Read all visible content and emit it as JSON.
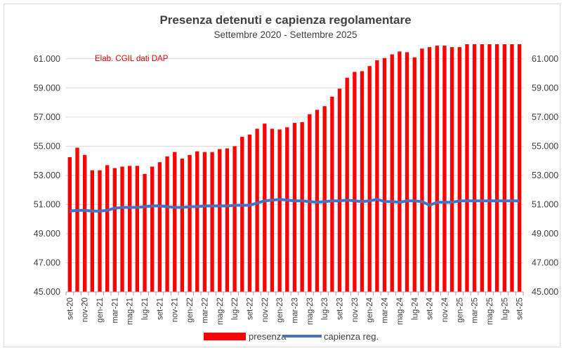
{
  "chart_data": {
    "type": "bar",
    "title": "Presenza detenuti e capienza regolamentare",
    "subtitle": "Settembre 2020 - Settembre 2025",
    "annotation": "Elab. CGIL dati  DAP",
    "ylim": [
      45000,
      62000
    ],
    "yticks": [
      "45.000",
      "47.000",
      "49.000",
      "51.000",
      "53.000",
      "55.000",
      "57.000",
      "59.000",
      "61.000"
    ],
    "ytick_values": [
      45000,
      47000,
      49000,
      51000,
      53000,
      55000,
      57000,
      59000,
      61000
    ],
    "grid": true,
    "legend_position": "bottom",
    "categories": [
      "set-20",
      "ott-20",
      "nov-20",
      "dic-20",
      "gen-21",
      "feb-21",
      "mar-21",
      "apr-21",
      "mag-21",
      "giu-21",
      "lug-21",
      "ago-21",
      "set-21",
      "ott-21",
      "nov-21",
      "dic-21",
      "gen-22",
      "feb-22",
      "mar-22",
      "apr-22",
      "mag-22",
      "giu-22",
      "lug-22",
      "ago-22",
      "set-22",
      "ott-22",
      "nov-22",
      "dic-22",
      "gen-23",
      "feb-23",
      "mar-23",
      "apr-23",
      "mag-23",
      "giu-23",
      "lug-23",
      "ago-23",
      "set-23",
      "ott-23",
      "nov-23",
      "dic-23",
      "gen-24",
      "feb-24",
      "mar-24",
      "apr-24",
      "mag-24",
      "giu-24",
      "lug-24",
      "ago-24",
      "set-24",
      "ott-24",
      "nov-24",
      "dic-24",
      "gen-25",
      "feb-25",
      "mar-25",
      "apr-25",
      "mag-25",
      "giu-25",
      "lug-25",
      "ago-25",
      "set-25"
    ],
    "xtick_labels": [
      "set-20",
      "",
      "nov-20",
      "",
      "gen-21",
      "",
      "mar-21",
      "",
      "mag-21",
      "",
      "lug-21",
      "",
      "set-21",
      "",
      "nov-21",
      "",
      "gen-22",
      "",
      "mar-22",
      "",
      "mag-22",
      "",
      "lug-22",
      "",
      "set-22",
      "",
      "nov-22",
      "",
      "gen-23",
      "",
      "mar-23",
      "",
      "mag-23",
      "",
      "lug-23",
      "",
      "set-23",
      "",
      "nov-23",
      "",
      "gen-24",
      "",
      "mar-24",
      "",
      "mag-24",
      "",
      "lug-24",
      "",
      "set-24",
      "",
      "nov-24",
      "",
      "gen-25",
      "",
      "mar-25",
      "",
      "mag-25",
      "",
      "lug-25",
      "",
      "set-25"
    ],
    "series": [
      {
        "name": "presenza",
        "type": "bar",
        "color": "#ff0000",
        "values": [
          54250,
          54900,
          54400,
          53350,
          53350,
          53700,
          53500,
          53600,
          53650,
          53650,
          53100,
          53600,
          53900,
          54300,
          54600,
          54150,
          54400,
          54650,
          54600,
          54600,
          54800,
          54850,
          55000,
          55650,
          55800,
          56200,
          56550,
          56200,
          56150,
          56300,
          56600,
          56650,
          57200,
          57500,
          57750,
          58400,
          58950,
          59700,
          60100,
          60150,
          60500,
          60900,
          61050,
          61300,
          61500,
          61450,
          61100,
          61700,
          61800,
          61900,
          61900,
          61800,
          61800,
          62000,
          62000,
          62000,
          62000,
          62000,
          62000,
          62000,
          62000
        ]
      },
      {
        "name": "capienza reg.",
        "type": "line",
        "color": "#4472c4",
        "values": [
          50550,
          50600,
          50600,
          50550,
          50550,
          50600,
          50750,
          50800,
          50800,
          50800,
          50850,
          50900,
          50900,
          50850,
          50800,
          50800,
          50850,
          50850,
          50900,
          50900,
          50900,
          50900,
          50950,
          50950,
          50950,
          51100,
          51250,
          51300,
          51350,
          51300,
          51250,
          51250,
          51200,
          51150,
          51200,
          51250,
          51250,
          51300,
          51250,
          51200,
          51250,
          51350,
          51200,
          51200,
          51150,
          51250,
          51250,
          51200,
          50950,
          51150,
          51150,
          51150,
          51250,
          51250,
          51250,
          51250,
          51250,
          51250,
          51250,
          51250,
          51250
        ]
      }
    ]
  }
}
